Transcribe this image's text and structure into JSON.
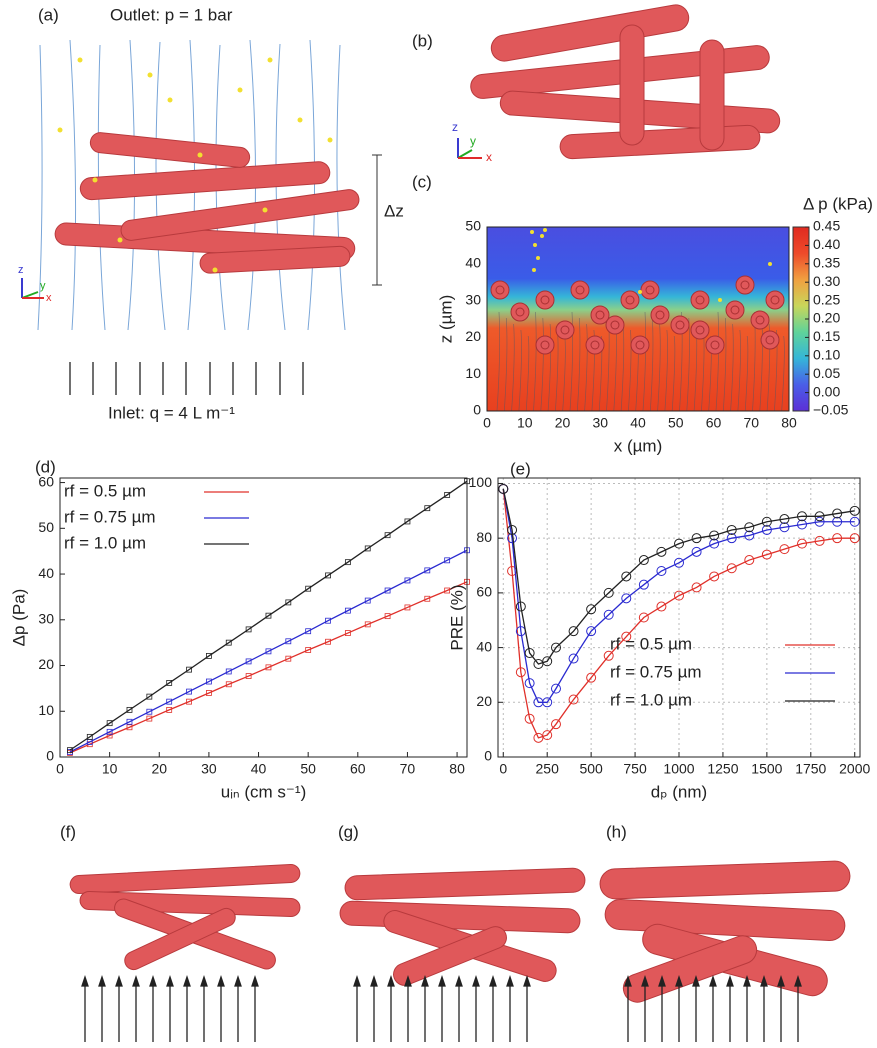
{
  "panels": {
    "a": {
      "label": "(a)",
      "outlet": "Outlet: p = 1 bar",
      "inlet": "Inlet: q = 4 L m⁻¹",
      "dz": "Δz",
      "axes": [
        "z",
        "y",
        "x"
      ]
    },
    "b": {
      "label": "(b)",
      "axes": [
        "z",
        "y",
        "x"
      ]
    },
    "c": {
      "label": "(c)"
    },
    "d": {
      "label": "(d)"
    },
    "e": {
      "label": "(e)"
    },
    "f": {
      "label": "(f)"
    },
    "g": {
      "label": "(g)"
    },
    "h": {
      "label": "(h)"
    }
  },
  "chart_data": [
    {
      "type": "field",
      "xlabel": "x (µm)",
      "ylabel": "z (µm)",
      "xlim": [
        0,
        80
      ],
      "xticks": [
        0,
        10,
        20,
        30,
        40,
        50,
        60,
        70,
        80
      ],
      "ylim": [
        0,
        50
      ],
      "yticks": [
        0,
        10,
        20,
        30,
        40,
        50
      ],
      "colorbar": {
        "title": "Δ p (kPa)",
        "lim": [
          -0.05,
          0.45
        ],
        "colors": [
          "#5b2fd6",
          "#4a5ee8",
          "#35b6d8",
          "#5fd39a",
          "#c9d65a",
          "#f0a040",
          "#ee4a2a",
          "#e02a20"
        ],
        "ticks": [
          {
            "value": -0.05,
            "label": "−0.05"
          },
          {
            "value": 0,
            "label": "0.00"
          },
          0.05,
          {
            "value": 0.1,
            "label": "0.10"
          },
          0.15,
          {
            "value": 0.2,
            "label": "0.20"
          },
          0.25,
          {
            "value": 0.3,
            "label": "0.30"
          },
          0.35,
          {
            "value": 0.4,
            "label": "0.40"
          },
          0.45
        ]
      }
    },
    {
      "type": "line",
      "xlabel": "uᵢₙ (cm s⁻¹)",
      "ylabel": "Δp (Pa)",
      "marker": "square",
      "legend": "upper left",
      "xlim": [
        0,
        82
      ],
      "xticks": [
        0,
        10,
        20,
        30,
        40,
        50,
        60,
        70,
        80
      ],
      "ylim": [
        0,
        61
      ],
      "yticks": [
        0,
        10,
        20,
        30,
        40,
        50,
        60
      ],
      "x": [
        2,
        6,
        10,
        14,
        18,
        22,
        26,
        30,
        34,
        38,
        42,
        46,
        50,
        54,
        58,
        62,
        66,
        70,
        74,
        78,
        82
      ],
      "series": [
        {
          "name": "rf = 0.5 µm",
          "color": "#e0302a",
          "values": [
            0.9,
            2.8,
            4.7,
            6.5,
            8.4,
            10.3,
            12.1,
            14.0,
            15.9,
            17.7,
            19.6,
            21.5,
            23.4,
            25.2,
            27.1,
            29.0,
            30.8,
            32.7,
            34.6,
            36.4,
            38.3
          ]
        },
        {
          "name": "rf = 0.75 µm",
          "color": "#2a2ad0",
          "values": [
            1.1,
            3.3,
            5.5,
            7.7,
            9.9,
            12.1,
            14.3,
            16.5,
            18.7,
            20.9,
            23.1,
            25.3,
            27.5,
            29.8,
            32.0,
            34.2,
            36.4,
            38.6,
            40.8,
            43.0,
            45.2
          ]
        },
        {
          "name": "rf = 1.0 µm",
          "color": "#222222",
          "values": [
            1.5,
            4.4,
            7.4,
            10.3,
            13.2,
            16.2,
            19.1,
            22.1,
            25.0,
            27.9,
            30.9,
            33.8,
            36.8,
            39.7,
            42.6,
            45.6,
            48.5,
            51.5,
            54.4,
            57.3,
            60.3
          ]
        }
      ]
    },
    {
      "type": "line",
      "xlabel": "dₚ (nm)",
      "ylabel": "PRE (%)",
      "marker": "circle",
      "legend": "lower right",
      "grid": true,
      "xlim": [
        -30,
        2030
      ],
      "xticks": [
        0,
        250,
        500,
        750,
        1000,
        1250,
        1500,
        1750,
        2000
      ],
      "ylim": [
        0,
        102
      ],
      "yticks": [
        0,
        20,
        40,
        60,
        80,
        100
      ],
      "x": [
        0,
        50,
        100,
        150,
        200,
        250,
        300,
        400,
        500,
        600,
        700,
        800,
        900,
        1000,
        1100,
        1200,
        1300,
        1400,
        1500,
        1600,
        1700,
        1800,
        1900,
        2000
      ],
      "series": [
        {
          "name": "rf = 0.5 µm",
          "color": "#e0302a",
          "values": [
            98,
            68,
            31,
            14,
            7,
            8,
            12,
            21,
            29,
            37,
            44,
            51,
            55,
            59,
            62,
            66,
            69,
            72,
            74,
            76,
            78,
            79,
            80,
            80
          ]
        },
        {
          "name": "rf = 0.75 µm",
          "color": "#2a2ad0",
          "values": [
            98,
            80,
            46,
            27,
            20,
            20,
            25,
            36,
            46,
            52,
            58,
            63,
            68,
            71,
            75,
            78,
            80,
            81,
            83,
            84,
            85,
            86,
            86,
            86
          ]
        },
        {
          "name": "rf = 1.0 µm",
          "color": "#222222",
          "values": [
            98,
            83,
            55,
            38,
            34,
            35,
            40,
            46,
            54,
            60,
            66,
            72,
            75,
            78,
            80,
            81,
            83,
            84,
            86,
            87,
            88,
            88,
            89,
            90
          ]
        }
      ]
    }
  ]
}
